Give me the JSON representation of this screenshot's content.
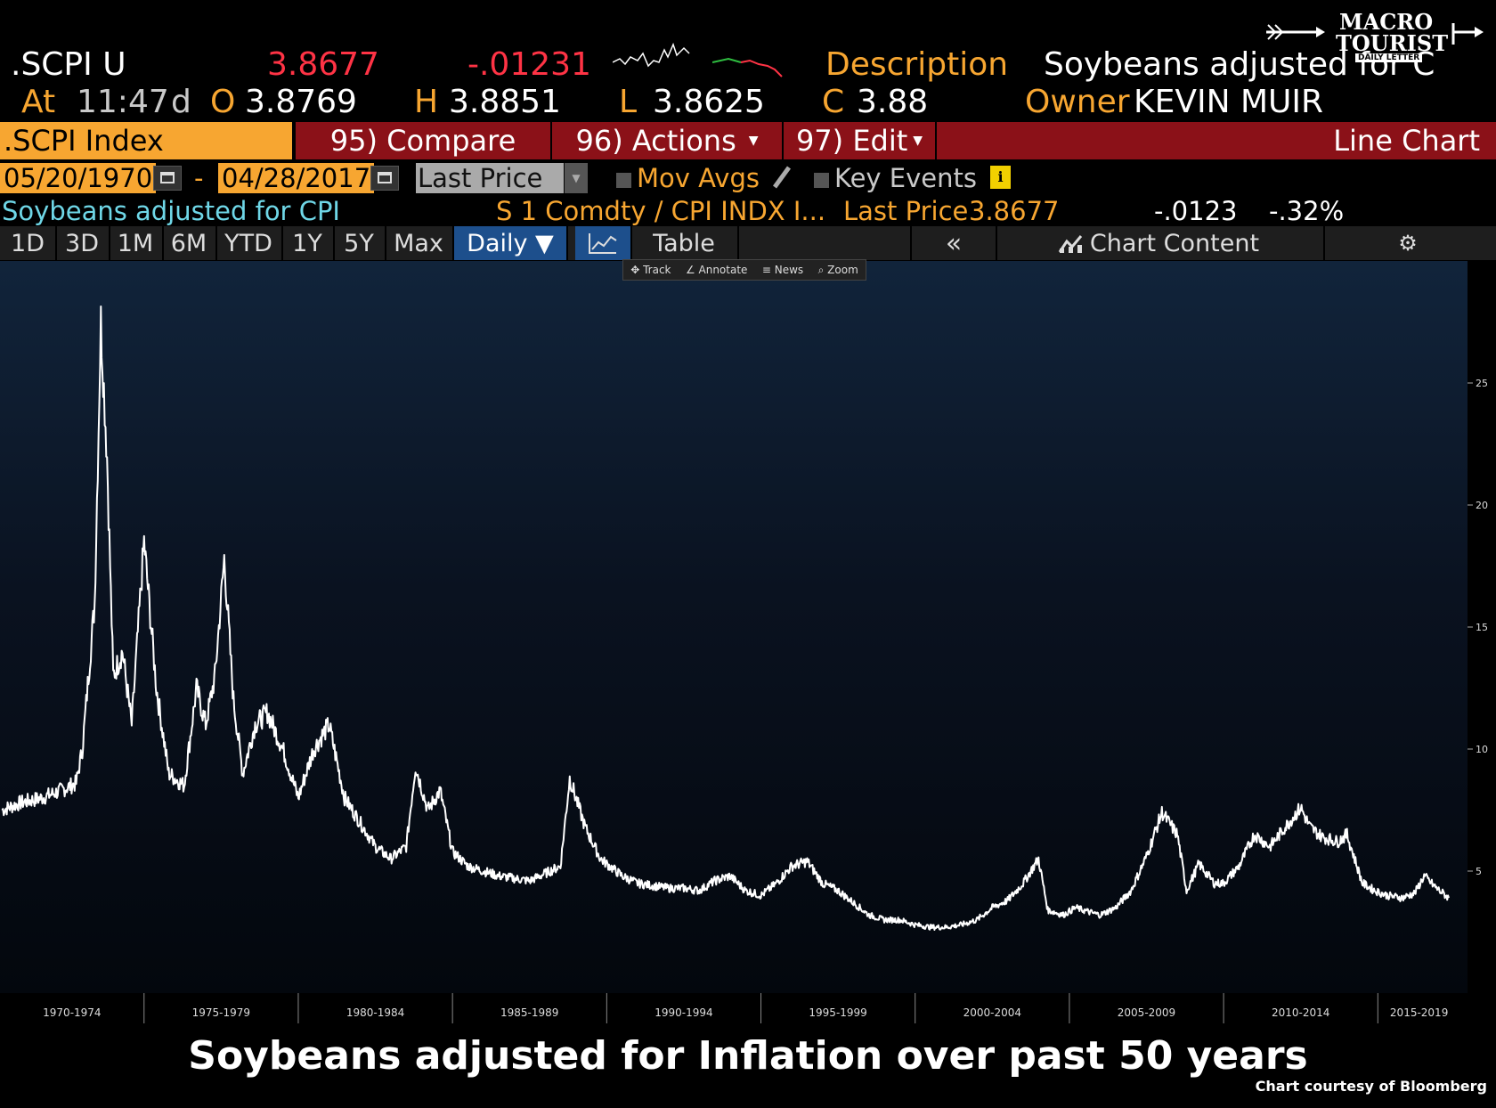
{
  "header": {
    "ticker": ".SCPI U",
    "price": "3.8677",
    "change": "-.01231",
    "description_label": "Description",
    "description_value": "Soybeans adjusted for C",
    "at_label": "At",
    "time": "11:47",
    "d": "d",
    "o_label": "O",
    "o_value": "3.8769",
    "h_label": "H",
    "h_value": "3.8851",
    "l_label": "L",
    "l_value": "3.8625",
    "c_label": "C",
    "c_value": "3.88",
    "owner_label": "Owner",
    "owner_value": "KEVIN MUIR"
  },
  "logo": {
    "line1": "MACRO",
    "line2": "TOURIST",
    "line3": "DAILY LETTER"
  },
  "menu": {
    "index_label": ".SCPI Index",
    "compare_label": "95) Compare",
    "actions_label": "96) Actions",
    "edit_label": "97) Edit",
    "chart_type": "Line Chart"
  },
  "controls": {
    "start_date": "05/20/1970",
    "dash": "-",
    "end_date": "04/28/2017",
    "field": "Last Price",
    "mov_avgs": "Mov Avgs",
    "key_events": "Key Events",
    "info": "i"
  },
  "legend": {
    "series": "Soybeans adjusted for CPI",
    "formula": "S 1 Comdty / CPI INDX I...",
    "last_price_label": "Last Price",
    "last_price_value": "3.8677",
    "net_change": "-.0123",
    "pct_change": "-.32%"
  },
  "periods": [
    "1D",
    "3D",
    "1M",
    "6M",
    "YTD",
    "1Y",
    "5Y",
    "Max"
  ],
  "daily": "Daily ▼",
  "table_label": "Table",
  "chart_content": "Chart Content",
  "mini_toolbar": [
    "Track",
    "Annotate",
    "News",
    "Zoom"
  ],
  "footer": {
    "title": "Soybeans adjusted for Inflation over past 50 years",
    "credit": "Chart courtesy of Bloomberg"
  },
  "colors": {
    "orange": "#f7a631",
    "red": "#ff3345",
    "menu_red": "#8b1118",
    "cyan": "#6fd7e7",
    "active_blue": "#1d4f8c"
  },
  "chart_data": {
    "type": "line",
    "x_ticks": [
      "1970-1974",
      "1975-1979",
      "1980-1984",
      "1985-1989",
      "1990-1994",
      "1995-1999",
      "2000-2004",
      "2005-2009",
      "2010-2014",
      "2015-2019"
    ],
    "y_ticks": [
      5,
      10,
      15,
      20,
      25
    ],
    "ylim": [
      0,
      30
    ],
    "x": [
      1970.4,
      1971.0,
      1971.7,
      1972.3,
      1972.8,
      1973.0,
      1973.4,
      1973.6,
      1973.8,
      1974.0,
      1974.3,
      1974.6,
      1975.0,
      1975.4,
      1975.8,
      1976.3,
      1976.7,
      1977.0,
      1977.3,
      1977.6,
      1977.9,
      1978.2,
      1978.6,
      1979.0,
      1979.5,
      1980.0,
      1980.5,
      1981.0,
      1981.5,
      1982.0,
      1982.5,
      1983.0,
      1983.5,
      1983.8,
      1984.2,
      1984.6,
      1985.0,
      1985.5,
      1986.0,
      1986.5,
      1987.0,
      1987.5,
      1988.0,
      1988.5,
      1988.8,
      1989.3,
      1989.8,
      1990.5,
      1991.0,
      1991.5,
      1992.0,
      1992.5,
      1993.0,
      1993.5,
      1994.0,
      1994.5,
      1995.0,
      1995.5,
      1996.0,
      1996.5,
      1997.0,
      1997.5,
      1998.0,
      1998.5,
      1999.0,
      1999.5,
      2000.0,
      2000.5,
      2001.0,
      2001.5,
      2002.0,
      2002.5,
      2003.0,
      2003.5,
      2004.0,
      2004.3,
      2004.8,
      2005.2,
      2005.7,
      2006.0,
      2006.5,
      2007.0,
      2007.5,
      2008.0,
      2008.5,
      2008.8,
      2009.2,
      2009.7,
      2010.0,
      2010.5,
      2011.0,
      2011.5,
      2012.0,
      2012.5,
      2012.8,
      2013.2,
      2013.7,
      2014.0,
      2014.5,
      2014.9,
      2015.3,
      2015.8,
      2016.2,
      2016.5,
      2016.9,
      2017.3
    ],
    "y": [
      7.5,
      7.8,
      8.0,
      8.3,
      8.6,
      10.0,
      16.0,
      27.5,
      22.0,
      13.0,
      14.0,
      11.0,
      18.5,
      12.5,
      9.0,
      8.5,
      12.5,
      11.0,
      13.0,
      17.8,
      12.0,
      9.0,
      11.0,
      11.5,
      10.0,
      8.0,
      10.0,
      11.0,
      8.0,
      7.0,
      6.0,
      5.5,
      6.0,
      9.3,
      7.5,
      8.3,
      5.8,
      5.2,
      5.0,
      4.8,
      4.7,
      4.6,
      4.9,
      5.2,
      8.8,
      6.8,
      5.5,
      4.8,
      4.5,
      4.4,
      4.3,
      4.3,
      4.2,
      4.6,
      4.8,
      4.2,
      4.0,
      4.5,
      5.2,
      5.4,
      4.5,
      4.2,
      3.7,
      3.2,
      3.0,
      3.0,
      2.8,
      2.7,
      2.7,
      2.8,
      3.0,
      3.5,
      3.8,
      4.5,
      5.5,
      3.4,
      3.2,
      3.5,
      3.3,
      3.2,
      3.5,
      4.2,
      5.6,
      7.4,
      6.5,
      4.2,
      5.3,
      4.5,
      4.5,
      5.2,
      6.5,
      6.0,
      6.8,
      7.6,
      6.8,
      6.4,
      6.2,
      6.5,
      4.5,
      4.2,
      4.0,
      3.9,
      4.1,
      4.8,
      4.3,
      3.9
    ]
  }
}
